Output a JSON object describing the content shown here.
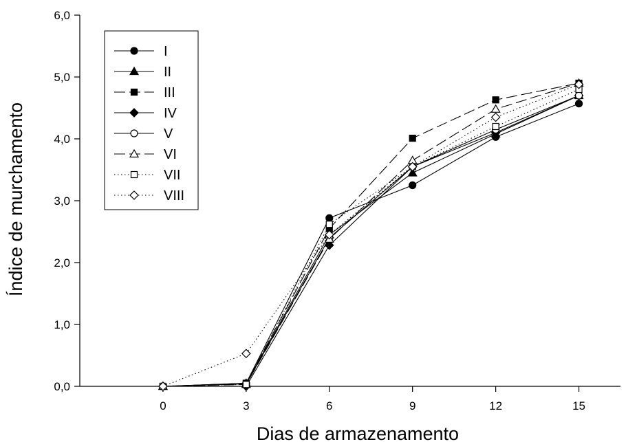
{
  "chart_data": {
    "type": "line",
    "xlabel": "Dias de armazenamento",
    "ylabel": "Índice de murchamento",
    "x": [
      0,
      3,
      6,
      9,
      12,
      15
    ],
    "x_ticks": [
      "0",
      "3",
      "6",
      "9",
      "12",
      "15"
    ],
    "xlim": [
      -3,
      16.5
    ],
    "ylim": [
      0,
      6
    ],
    "y_ticks": [
      "0,0",
      "1,0",
      "2,0",
      "3,0",
      "4,0",
      "5,0",
      "6,0"
    ],
    "grid": false,
    "legend_position": "top-left",
    "series": [
      {
        "name": "I",
        "marker": "circle",
        "fill": "filled",
        "line": "solid",
        "values": [
          0,
          0.05,
          2.72,
          3.25,
          4.03,
          4.57
        ]
      },
      {
        "name": "II",
        "marker": "triangle",
        "fill": "filled",
        "line": "solid",
        "values": [
          0,
          0.05,
          2.45,
          3.45,
          4.08,
          4.7
        ]
      },
      {
        "name": "III",
        "marker": "square",
        "fill": "filled",
        "line": "long-dash",
        "values": [
          0,
          0.05,
          2.55,
          4.01,
          4.63,
          4.9
        ]
      },
      {
        "name": "IV",
        "marker": "diamond",
        "fill": "filled",
        "line": "solid",
        "values": [
          0,
          0.0,
          2.28,
          3.55,
          4.1,
          4.7
        ]
      },
      {
        "name": "V",
        "marker": "circle",
        "fill": "open",
        "line": "solid",
        "values": [
          0,
          0.04,
          2.4,
          3.55,
          4.15,
          4.7
        ]
      },
      {
        "name": "VI",
        "marker": "triangle",
        "fill": "open",
        "line": "long-dash",
        "values": [
          0,
          0.03,
          2.38,
          3.65,
          4.48,
          4.9
        ]
      },
      {
        "name": "VII",
        "marker": "square",
        "fill": "open",
        "line": "dotted",
        "values": [
          0,
          0.03,
          2.62,
          3.55,
          4.2,
          4.8
        ]
      },
      {
        "name": "VIII",
        "marker": "diamond",
        "fill": "open",
        "line": "dotted",
        "values": [
          0,
          0.53,
          2.45,
          3.55,
          4.35,
          4.88
        ]
      }
    ]
  }
}
